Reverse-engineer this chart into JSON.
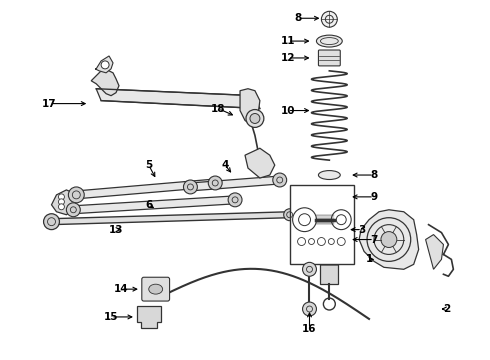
{
  "background_color": "#ffffff",
  "line_color": "#333333",
  "fig_width": 4.9,
  "fig_height": 3.6,
  "dpi": 100
}
